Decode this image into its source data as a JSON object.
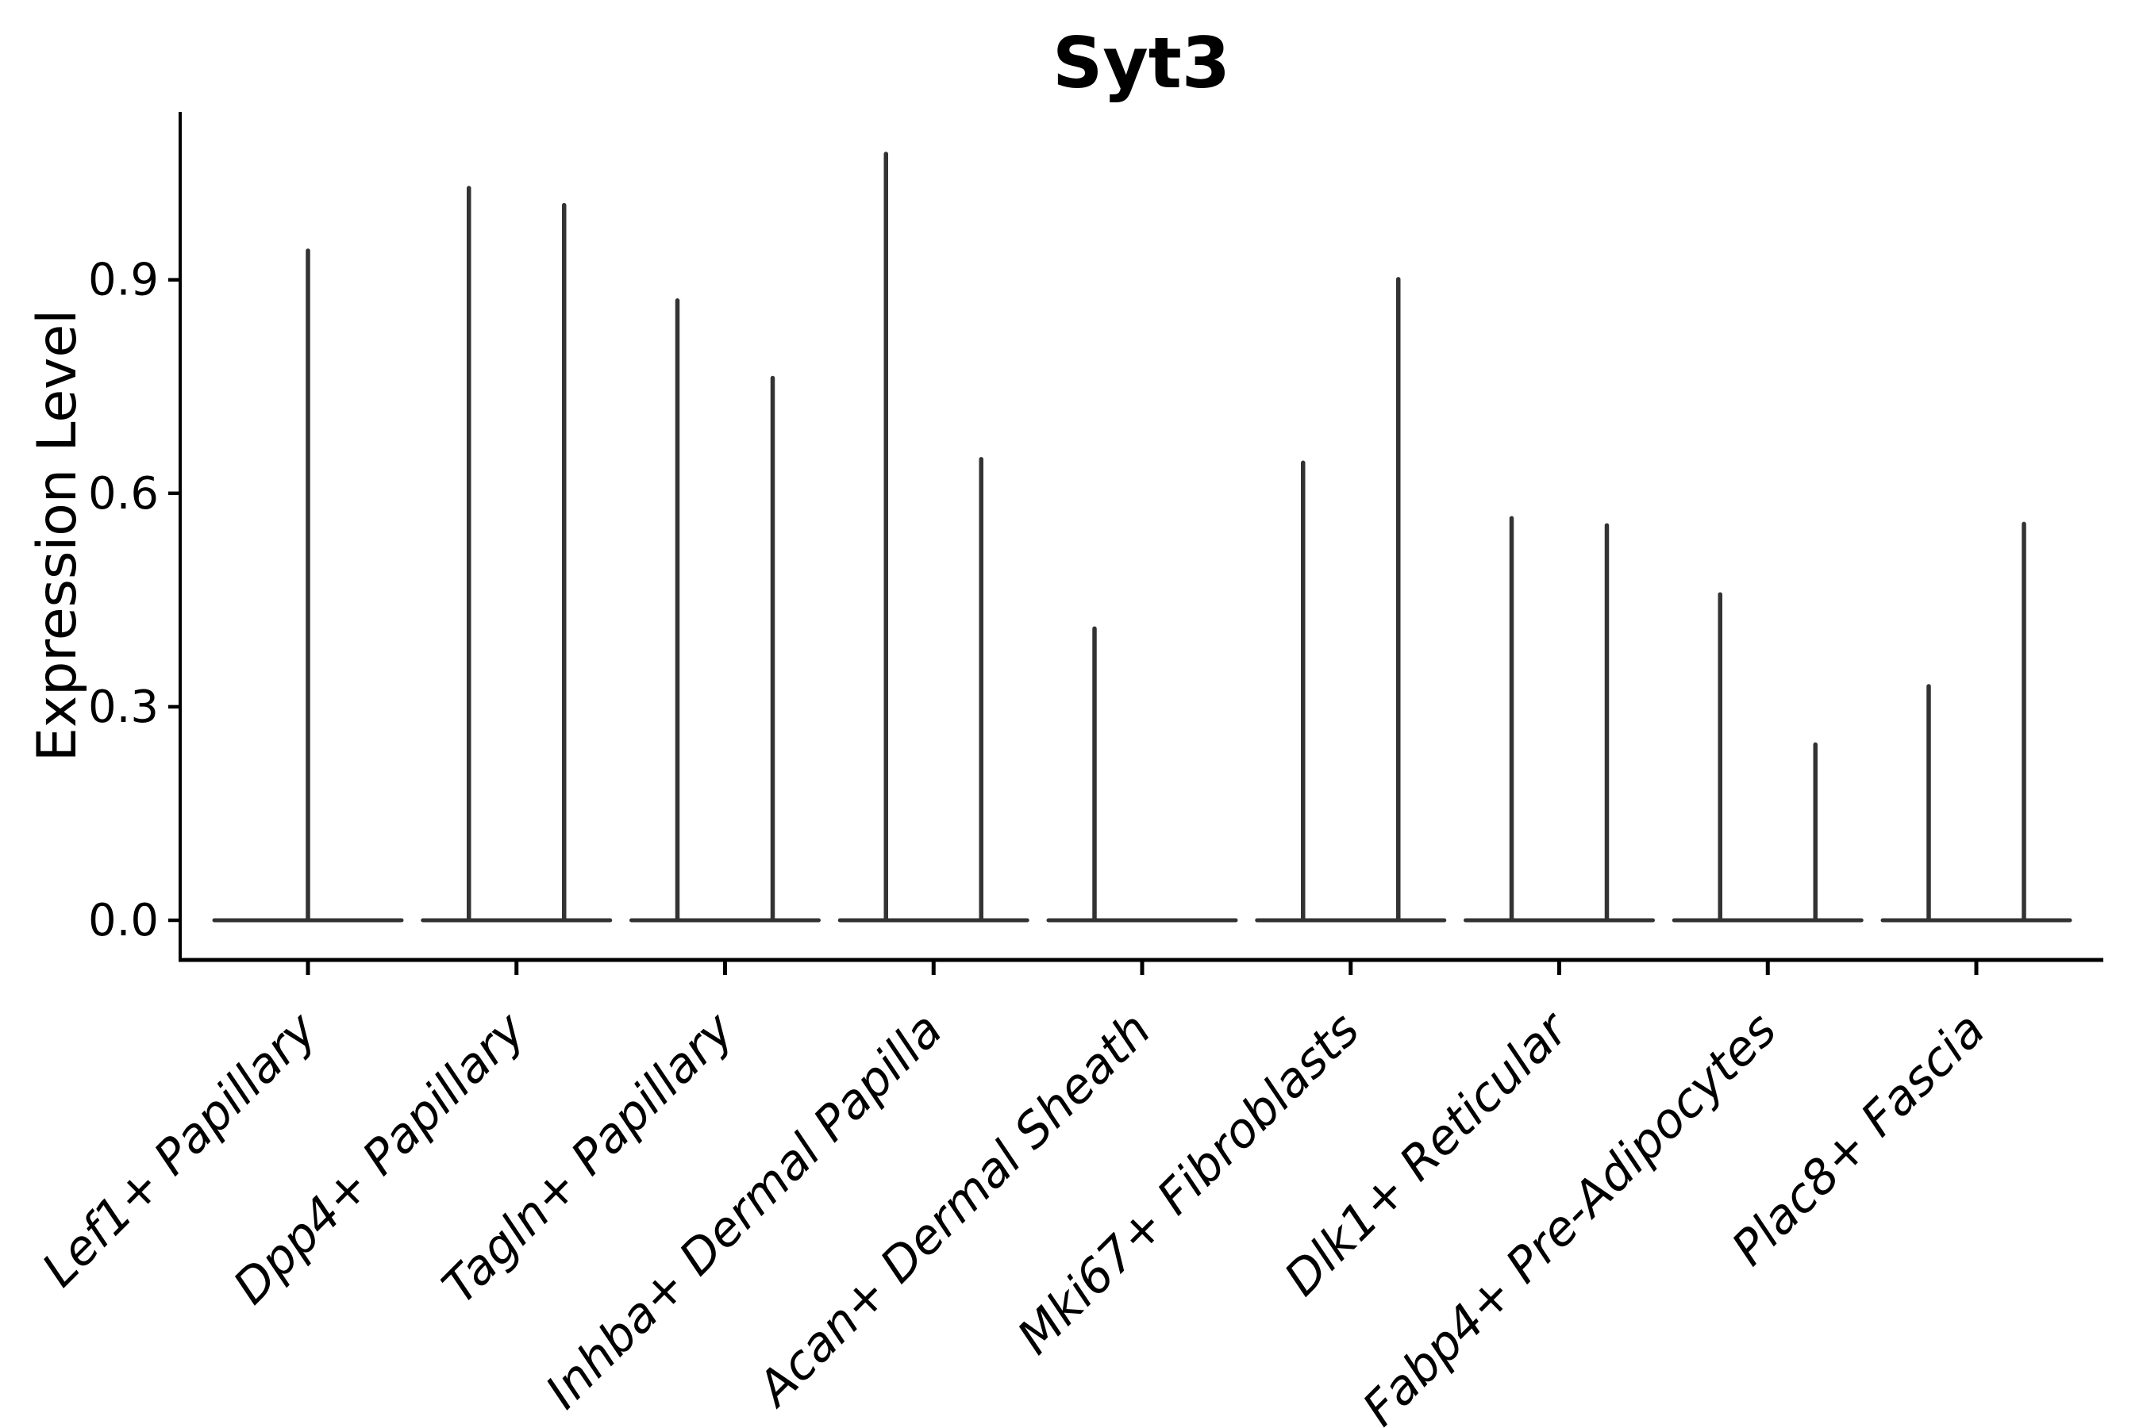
{
  "chart_data": {
    "type": "violin",
    "title": "Syt3",
    "xlabel": "",
    "ylabel": "Expression Level",
    "ylim": [
      -0.06,
      1.14
    ],
    "yticks": [
      0.0,
      0.3,
      0.6,
      0.9
    ],
    "ytick_labels": [
      "0.0",
      "0.3",
      "0.6",
      "0.9"
    ],
    "grid": false,
    "legend": "none",
    "orientation": "vertical",
    "baseline_value": 0.0,
    "violin_color": "#333333",
    "axis_color": "#000000",
    "note_shape": "each violin is a flat density mass at 0 with a thin spike to its maximum expression value",
    "categories": [
      {
        "label": "Lef1+ Papillary",
        "violins": [
          {
            "position": "center",
            "max": 0.944
          }
        ]
      },
      {
        "label": "Dpp4+ Papillary",
        "violins": [
          {
            "position": "left",
            "max": 1.032
          },
          {
            "position": "right",
            "max": 1.008
          }
        ]
      },
      {
        "label": "Tagln+ Papillary",
        "violins": [
          {
            "position": "left",
            "max": 0.874
          },
          {
            "position": "right",
            "max": 0.765
          }
        ]
      },
      {
        "label": "Inhba+ Dermal Papilla",
        "violins": [
          {
            "position": "left",
            "max": 1.08
          },
          {
            "position": "right",
            "max": 0.651
          }
        ]
      },
      {
        "label": "Acan+ Dermal Sheath",
        "violins": [
          {
            "position": "left",
            "max": 0.413
          }
        ]
      },
      {
        "label": "Mki67+ Fibroblasts",
        "violins": [
          {
            "position": "left",
            "max": 0.646
          },
          {
            "position": "right",
            "max": 0.904
          }
        ]
      },
      {
        "label": "Dlk1+ Reticular",
        "violins": [
          {
            "position": "left",
            "max": 0.568
          },
          {
            "position": "right",
            "max": 0.558
          }
        ]
      },
      {
        "label": "Fabp4+ Pre-Adipocytes",
        "violins": [
          {
            "position": "left",
            "max": 0.461
          },
          {
            "position": "right",
            "max": 0.25
          }
        ]
      },
      {
        "label": "Plac8+ Fascia",
        "violins": [
          {
            "position": "left",
            "max": 0.332
          },
          {
            "position": "right",
            "max": 0.56
          }
        ]
      }
    ]
  }
}
